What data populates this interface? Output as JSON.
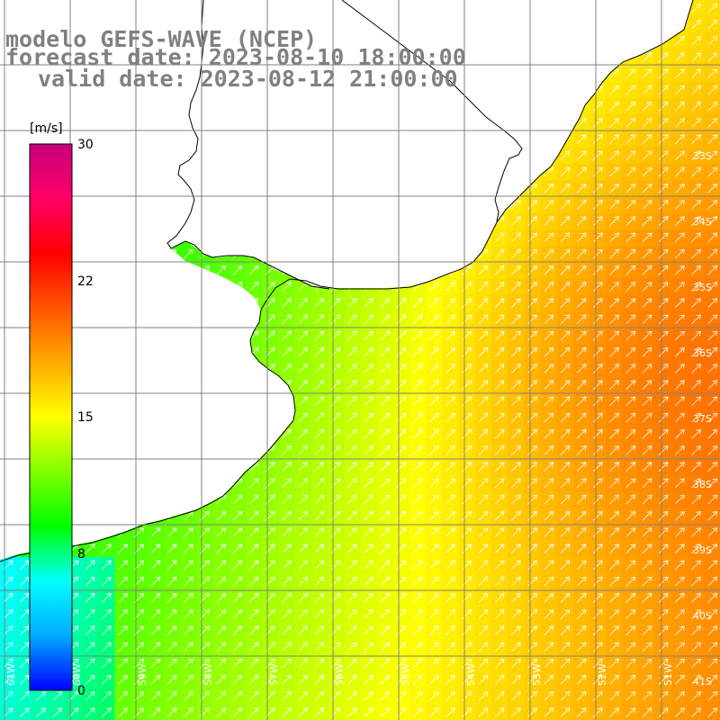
{
  "title": {
    "model": "modelo GEFS-WAVE (NCEP)",
    "forecast": "forecast date: 2023-08-10 18:00:00",
    "valid": "valid date: 2023-08-12 21:00:00"
  },
  "colorbar": {
    "unit": "[m/s]",
    "ticks": [
      "30",
      "22",
      "15",
      "8",
      "0"
    ],
    "colors": [
      "#0000ff",
      "#00aaff",
      "#00ffff",
      "#00ff00",
      "#80ff00",
      "#ffff00",
      "#ffaa00",
      "#ff5500",
      "#ff0000",
      "#ff0066",
      "#c8007c"
    ]
  },
  "grid": {
    "lat_labels": [
      "33S",
      "34S",
      "35S",
      "36S",
      "37S",
      "38S",
      "39S",
      "40S",
      "41S"
    ],
    "lon_labels": [
      "61W",
      "60W",
      "59W",
      "58W",
      "57W",
      "56W",
      "55W",
      "54W",
      "53W",
      "52W",
      "51W"
    ]
  },
  "colors": {
    "land": "#ffffff",
    "coast": "#000000",
    "gridline": "#808080",
    "arrow": "#ffffff",
    "title": "#808080"
  }
}
